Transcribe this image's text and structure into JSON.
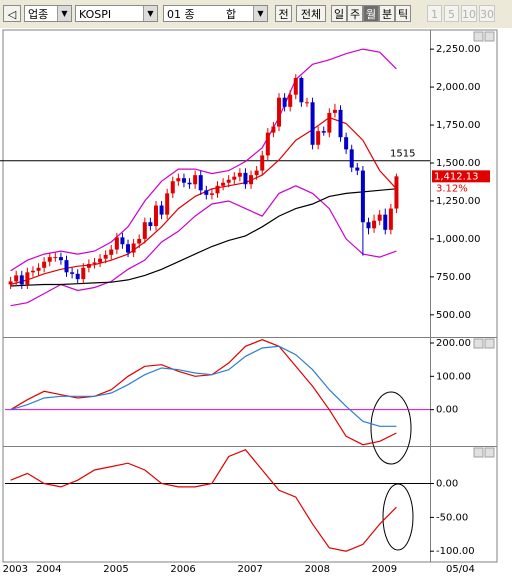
{
  "toolbar": {
    "market": "업종",
    "index": "KOSPI",
    "sector_code": "01 종",
    "sector_name": "합",
    "buttons": [
      "전",
      "전체",
      "일",
      "주",
      "월",
      "분",
      "틱"
    ],
    "intervals": [
      "1",
      "5",
      "10",
      "30"
    ]
  },
  "chart_data": [
    {
      "type": "candlestick",
      "x": [
        6,
        7,
        8,
        9,
        10,
        11,
        12,
        13,
        14,
        15,
        16,
        17,
        18,
        19,
        20,
        21,
        22,
        23,
        24,
        25,
        26,
        27,
        28,
        29,
        30,
        31,
        32,
        33,
        34,
        35,
        36,
        37,
        38,
        39,
        40,
        41,
        42,
        43,
        44,
        45,
        46,
        47,
        48,
        49,
        50,
        51,
        52,
        53,
        54,
        55,
        56,
        57,
        58,
        59,
        60,
        61,
        62,
        63,
        64,
        65,
        66,
        67,
        68,
        69,
        70,
        71,
        72,
        73,
        74,
        75
      ],
      "open": [
        700,
        720,
        760,
        700,
        780,
        790,
        810,
        850,
        880,
        880,
        860,
        780,
        770,
        735,
        810,
        835,
        845,
        870,
        895,
        930,
        1010,
        965,
        910,
        970,
        1000,
        1110,
        1085,
        1220,
        1160,
        1300,
        1380,
        1400,
        1370,
        1360,
        1420,
        1320,
        1290,
        1300,
        1350,
        1370,
        1390,
        1410,
        1435,
        1360,
        1420,
        1450,
        1550,
        1700,
        1740,
        1930,
        1870,
        1950,
        2060,
        1900,
        1900,
        1620,
        1710,
        1700,
        1830,
        1850,
        1670,
        1590,
        1470,
        1450,
        1110,
        1070,
        1120,
        1160,
        1060,
        1200
      ],
      "high": [
        750,
        790,
        790,
        810,
        820,
        840,
        880,
        910,
        910,
        910,
        890,
        810,
        800,
        840,
        865,
        875,
        900,
        925,
        960,
        1040,
        1040,
        995,
        1000,
        1030,
        1140,
        1140,
        1250,
        1250,
        1330,
        1410,
        1430,
        1430,
        1400,
        1450,
        1450,
        1350,
        1330,
        1380,
        1400,
        1420,
        1440,
        1465,
        1465,
        1450,
        1480,
        1580,
        1730,
        1770,
        1960,
        1960,
        1980,
        2085,
        2070,
        1930,
        1930,
        1740,
        1740,
        1860,
        1890,
        1880,
        1700,
        1620,
        1500,
        1480,
        1140,
        1160,
        1190,
        1200,
        1230,
        1430
      ],
      "low": [
        670,
        690,
        670,
        670,
        750,
        760,
        780,
        820,
        850,
        830,
        750,
        740,
        710,
        705,
        780,
        805,
        815,
        840,
        865,
        900,
        935,
        880,
        880,
        940,
        970,
        1055,
        1055,
        1130,
        1130,
        1270,
        1350,
        1340,
        1330,
        1330,
        1290,
        1260,
        1260,
        1270,
        1320,
        1340,
        1360,
        1380,
        1330,
        1330,
        1390,
        1420,
        1520,
        1670,
        1710,
        1840,
        1840,
        1920,
        1870,
        1870,
        1590,
        1590,
        1680,
        1670,
        1800,
        1640,
        1560,
        1440,
        1420,
        890,
        1030,
        1040,
        1090,
        1030,
        1030,
        1170
      ],
      "close": [
        720,
        760,
        700,
        780,
        790,
        810,
        850,
        880,
        880,
        860,
        780,
        770,
        735,
        810,
        835,
        845,
        870,
        895,
        930,
        1010,
        965,
        910,
        970,
        1000,
        1110,
        1085,
        1220,
        1160,
        1300,
        1380,
        1400,
        1370,
        1360,
        1420,
        1320,
        1290,
        1300,
        1350,
        1370,
        1390,
        1410,
        1435,
        1360,
        1420,
        1450,
        1550,
        1700,
        1740,
        1930,
        1870,
        1950,
        2060,
        1900,
        1900,
        1620,
        1710,
        1700,
        1830,
        1850,
        1670,
        1590,
        1470,
        1450,
        1110,
        1070,
        1120,
        1160,
        1060,
        1200,
        1412.13
      ],
      "up_color": "#e00000",
      "down_color": "#0000c8",
      "overlay_x": [
        6,
        9,
        12,
        15,
        18,
        21,
        24,
        27,
        30,
        33,
        36,
        39,
        42,
        45,
        48,
        51,
        54,
        57,
        60,
        63,
        66,
        69,
        72,
        75
      ],
      "overlays": [
        {
          "color": "#cc00cc",
          "values": [
            790,
            860,
            900,
            920,
            900,
            920,
            980,
            1080,
            1250,
            1380,
            1460,
            1460,
            1430,
            1450,
            1510,
            1600,
            1800,
            2050,
            2150,
            2180,
            2220,
            2250,
            2230,
            2120
          ]
        },
        {
          "color": "#cc00cc",
          "values": [
            560,
            580,
            640,
            700,
            660,
            680,
            720,
            800,
            860,
            980,
            1050,
            1150,
            1230,
            1250,
            1200,
            1150,
            1300,
            1350,
            1300,
            1200,
            1000,
            900,
            880,
            920
          ]
        },
        {
          "color": "#e00000",
          "values": [
            700,
            730,
            770,
            800,
            820,
            830,
            860,
            900,
            980,
            1080,
            1200,
            1280,
            1330,
            1350,
            1370,
            1420,
            1520,
            1650,
            1720,
            1800,
            1760,
            1650,
            1450,
            1330
          ]
        },
        {
          "color": "#000000",
          "values": [
            690,
            695,
            700,
            700,
            705,
            710,
            715,
            730,
            760,
            800,
            850,
            900,
            950,
            990,
            1020,
            1080,
            1150,
            1200,
            1230,
            1280,
            1300,
            1310,
            1320,
            1330
          ]
        }
      ],
      "hline": {
        "value": 1515,
        "label": "1515",
        "color": "#000000"
      },
      "last_price_label": "1,412.13",
      "change_label": "3.12%",
      "xlim": [
        5,
        81
      ],
      "xticks": [
        {
          "value": 6,
          "label": "2003"
        },
        {
          "value": 12,
          "label": "2004"
        },
        {
          "value": 24,
          "label": "2005"
        },
        {
          "value": 36,
          "label": "2006"
        },
        {
          "value": 48,
          "label": "2007"
        },
        {
          "value": 60,
          "label": "2008"
        },
        {
          "value": 72,
          "label": "2009"
        }
      ],
      "x_end_label": "05/04",
      "ylim": [
        354,
        2376
      ],
      "yticks": [
        {
          "value": 2250,
          "label": "2,250.00"
        },
        {
          "value": 2000,
          "label": "2,000.00"
        },
        {
          "value": 1750,
          "label": "1,750.00"
        },
        {
          "value": 1500,
          "label": "1,500.00"
        },
        {
          "value": 1250,
          "label": "1,250.00"
        },
        {
          "value": 1000,
          "label": "1,000.00"
        },
        {
          "value": 750,
          "label": "750.00"
        },
        {
          "value": 500,
          "label": "500.00"
        }
      ]
    },
    {
      "type": "line",
      "x": [
        6,
        9,
        12,
        15,
        18,
        21,
        24,
        27,
        30,
        33,
        36,
        39,
        42,
        45,
        48,
        51,
        54,
        57,
        60,
        63,
        66,
        69,
        72,
        75
      ],
      "series": [
        {
          "color": "#e00000",
          "values": [
            0,
            30,
            55,
            45,
            35,
            40,
            60,
            100,
            130,
            135,
            115,
            100,
            105,
            140,
            190,
            210,
            190,
            130,
            70,
            0,
            -80,
            -105,
            -95,
            -70
          ]
        },
        {
          "color": "#2a7fd0",
          "values": [
            0,
            15,
            35,
            40,
            40,
            40,
            50,
            75,
            105,
            125,
            120,
            110,
            105,
            120,
            160,
            185,
            190,
            165,
            120,
            60,
            10,
            -35,
            -50,
            -50
          ]
        }
      ],
      "hline": {
        "value": 0,
        "color": "#e000e0"
      },
      "ylim": [
        -109,
        215
      ],
      "yticks": [
        {
          "value": 200,
          "label": "200.00"
        },
        {
          "value": 100,
          "label": "100.00"
        },
        {
          "value": 0,
          "label": "0.00"
        }
      ]
    },
    {
      "type": "line",
      "x": [
        6,
        9,
        12,
        15,
        18,
        21,
        24,
        27,
        30,
        33,
        36,
        39,
        42,
        45,
        48,
        51,
        54,
        57,
        60,
        63,
        66,
        69,
        72,
        75
      ],
      "series": [
        {
          "color": "#e00000",
          "values": [
            5,
            15,
            0,
            -5,
            5,
            20,
            25,
            30,
            20,
            0,
            -5,
            -5,
            0,
            40,
            50,
            20,
            -10,
            -20,
            -60,
            -95,
            -100,
            -90,
            -60,
            -35
          ]
        }
      ],
      "hline": {
        "value": 0,
        "color": "#000000"
      },
      "ylim": [
        -113,
        54
      ],
      "yticks": [
        {
          "value": 0,
          "label": "0.00"
        },
        {
          "value": -50,
          "label": "-50.00"
        },
        {
          "value": -100,
          "label": "-100.00"
        }
      ]
    }
  ]
}
